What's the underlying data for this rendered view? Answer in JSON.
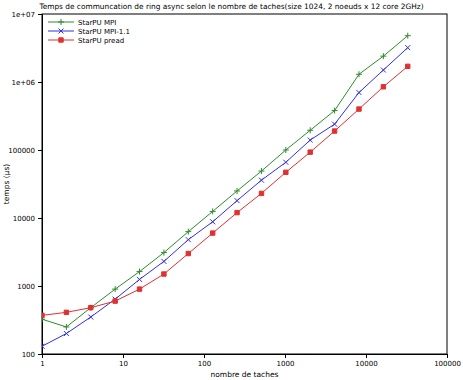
{
  "chart_data": {
    "type": "line",
    "title": "Temps de communcation de ring async selon le nombre de taches(size 1024, 2 noeuds x 12 core 2GHz)",
    "xlabel": "nombre de taches",
    "ylabel": "temps (µs)",
    "log": true,
    "grid": false,
    "legend": "top-left",
    "x": [
      1,
      2,
      4,
      8,
      16,
      32,
      64,
      128,
      256,
      512,
      1024,
      2048,
      4096,
      8192,
      16384,
      32768
    ],
    "xlim": [
      1,
      100000
    ],
    "xticks": [
      1,
      10,
      100,
      1000,
      10000,
      100000
    ],
    "ylim": [
      100,
      10000000
    ],
    "yticks": [
      100,
      1000,
      10000,
      100000,
      {
        "value": 1000000,
        "label": "1e+06"
      },
      {
        "value": 10000000,
        "label": "1e+07"
      }
    ],
    "series": [
      {
        "name": "StarPU MPI",
        "color": "#2e8b2e",
        "marker": "plus",
        "line_style": "solid",
        "values": [
          325,
          250,
          480,
          900,
          1630,
          3100,
          6300,
          12500,
          25000,
          49000,
          100000,
          195000,
          380000,
          1300000,
          2400000,
          4800000
        ]
      },
      {
        "name": "StarPU MPI-1.1",
        "color": "#3030e0",
        "marker": "x",
        "line_style": "solid",
        "values": [
          130,
          200,
          350,
          640,
          1250,
          2300,
          4800,
          8800,
          18000,
          36000,
          66000,
          140000,
          240000,
          700000,
          1500000,
          3200000
        ]
      },
      {
        "name": "StarPU pread",
        "color": "#e03030",
        "marker": "square",
        "line_style": "solid",
        "values": [
          370,
          410,
          480,
          600,
          900,
          1500,
          3000,
          6000,
          12000,
          23000,
          47000,
          93000,
          190000,
          400000,
          850000,
          1700000
        ]
      }
    ]
  }
}
